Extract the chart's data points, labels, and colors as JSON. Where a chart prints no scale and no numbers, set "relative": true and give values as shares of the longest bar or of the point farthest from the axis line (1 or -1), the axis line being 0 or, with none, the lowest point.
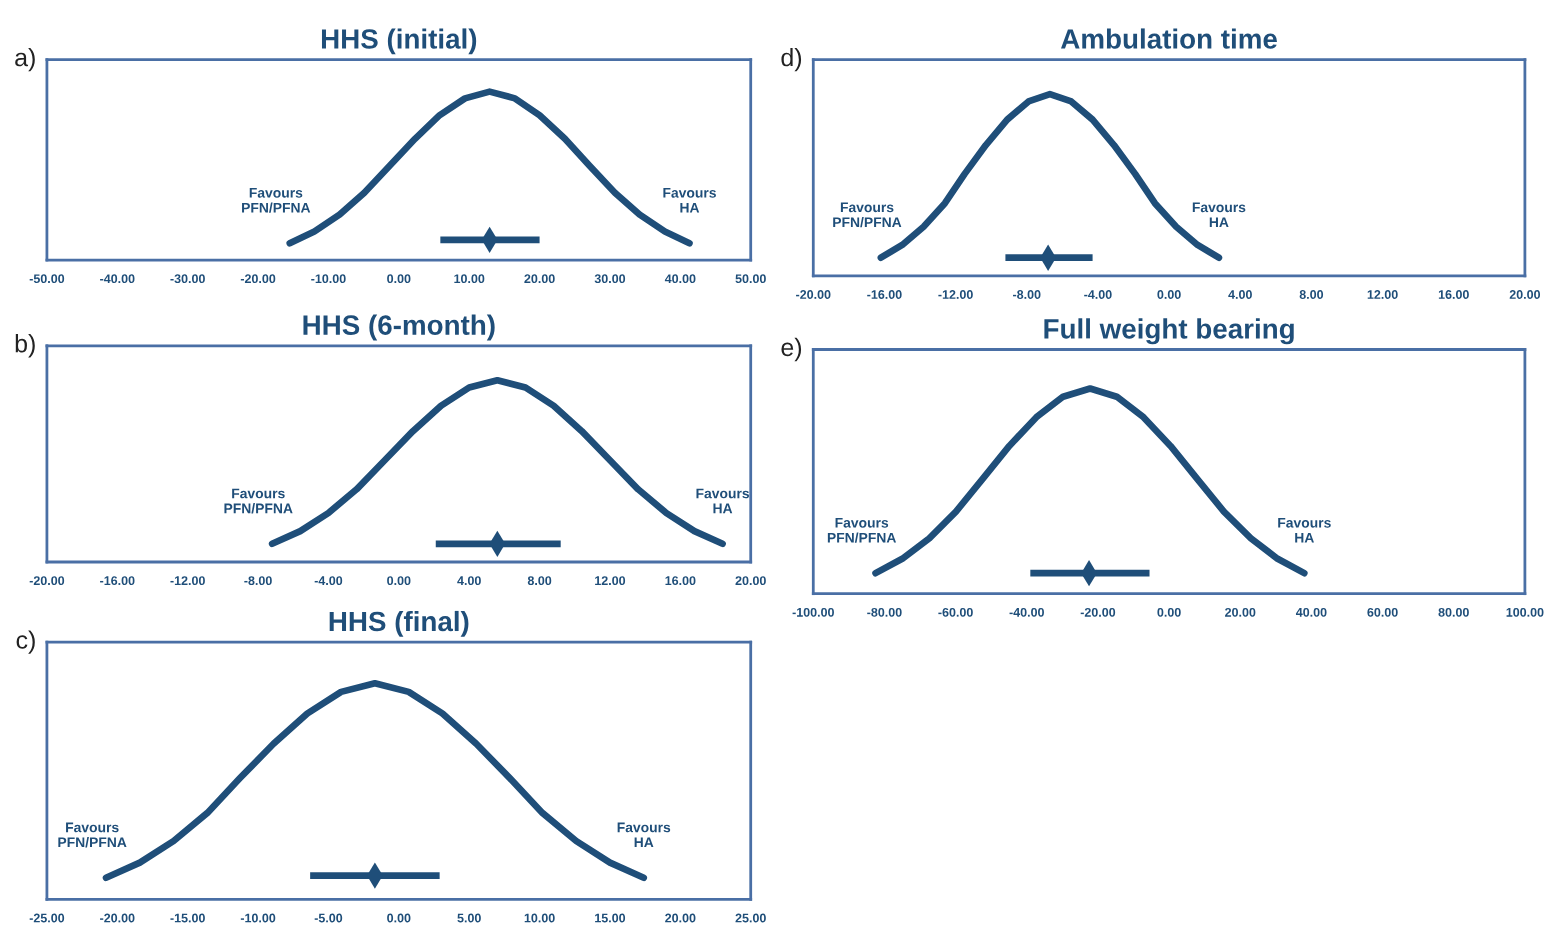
{
  "chart_data": [
    {
      "type": "line",
      "title": "HHS (initial)",
      "relative": true,
      "tick_labels": "x",
      "annotations": [
        "a)",
        "Favours\nPFN/PFNA",
        "Favours\nHA"
      ],
      "xlim": [
        -50,
        50
      ],
      "xticks": [
        {
          "value": -50,
          "label": "-50.00"
        },
        {
          "value": -40,
          "label": "-40.00"
        },
        {
          "value": -30,
          "label": "-30.00"
        },
        {
          "value": -20,
          "label": "-20.00"
        },
        {
          "value": -10,
          "label": "-10.00"
        },
        {
          "value": 0,
          "label": "0.00"
        },
        {
          "value": 10,
          "label": "10.00"
        },
        {
          "value": 20,
          "label": "20.00"
        },
        {
          "value": 30,
          "label": "30.00"
        },
        {
          "value": 40,
          "label": "40.00"
        },
        {
          "value": 50,
          "label": "50.00"
        }
      ],
      "series": [
        {
          "color": "#1f4e79",
          "x": [
            -15.5,
            -12.0,
            -8.4,
            -4.9,
            -1.3,
            2.3,
            5.8,
            9.4,
            12.9,
            16.5,
            20.0,
            23.6,
            27.1,
            30.7,
            34.2,
            37.8,
            41.3
          ],
          "values": [
            0.1,
            0.17,
            0.27,
            0.4,
            0.56,
            0.72,
            0.86,
            0.96,
            1,
            0.96,
            0.86,
            0.72,
            0.56,
            0.4,
            0.27,
            0.17,
            0.1
          ]
        },
        {
          "type": "scatter",
          "color": "#1f4e79",
          "x": [
            12.9
          ],
          "values": [
            0.12
          ],
          "marker": "diamond",
          "xerrors": [
            [
              5.9,
              20.0
            ]
          ]
        }
      ]
    },
    {
      "type": "line",
      "title": "HHS (6-month)",
      "relative": true,
      "tick_labels": "x",
      "annotations": [
        "b)",
        "Favours\nPFN/PFNA",
        "Favours\nHA"
      ],
      "xlim": [
        -20,
        20
      ],
      "xticks": [
        {
          "value": -20,
          "label": "-20.00"
        },
        {
          "value": -16,
          "label": "-16.00"
        },
        {
          "value": -12,
          "label": "-12.00"
        },
        {
          "value": -8,
          "label": "-8.00"
        },
        {
          "value": -4,
          "label": "-4.00"
        },
        {
          "value": 0,
          "label": "0.00"
        },
        {
          "value": 4,
          "label": "4.00"
        },
        {
          "value": 8,
          "label": "8.00"
        },
        {
          "value": 12,
          "label": "12.00"
        },
        {
          "value": 16,
          "label": "16.00"
        },
        {
          "value": 20,
          "label": "20.00"
        }
      ],
      "series": [
        {
          "color": "#1f4e79",
          "x": [
            -7.2,
            -5.6,
            -4.0,
            -2.4,
            -0.8,
            0.8,
            2.4,
            4.0,
            5.6,
            7.2,
            8.8,
            10.4,
            12.0,
            13.6,
            15.2,
            16.8,
            18.4
          ],
          "values": [
            0.1,
            0.17,
            0.27,
            0.4,
            0.56,
            0.72,
            0.86,
            0.96,
            1,
            0.96,
            0.86,
            0.72,
            0.56,
            0.4,
            0.27,
            0.17,
            0.1
          ]
        },
        {
          "type": "scatter",
          "color": "#1f4e79",
          "x": [
            5.6
          ],
          "values": [
            0.1
          ],
          "marker": "diamond",
          "xerrors": [
            [
              2.1,
              9.2
            ]
          ]
        }
      ]
    },
    {
      "type": "line",
      "title": "HHS (final)",
      "relative": true,
      "tick_labels": "x",
      "annotations": [
        "c)",
        "Favours\nPFN/PFNA",
        "Favours\nHA"
      ],
      "xlim": [
        -25,
        25
      ],
      "xticks": [
        {
          "value": -25,
          "label": "-25.00"
        },
        {
          "value": -20,
          "label": "-20.00"
        },
        {
          "value": -15,
          "label": "-15.00"
        },
        {
          "value": -10,
          "label": "-10.00"
        },
        {
          "value": -5,
          "label": "-5.00"
        },
        {
          "value": 0,
          "label": "0.00"
        },
        {
          "value": 5,
          "label": "5.00"
        },
        {
          "value": 10,
          "label": "10.00"
        },
        {
          "value": 15,
          "label": "15.00"
        },
        {
          "value": 20,
          "label": "20.00"
        },
        {
          "value": 25,
          "label": "25.00"
        }
      ],
      "series": [
        {
          "color": "#1f4e79",
          "x": [
            -20.8,
            -18.4,
            -16.0,
            -13.6,
            -11.3,
            -8.9,
            -6.5,
            -4.1,
            -1.7,
            0.7,
            3.1,
            5.5,
            7.9,
            10.2,
            12.6,
            15.0,
            17.4
          ],
          "values": [
            0.1,
            0.17,
            0.27,
            0.4,
            0.56,
            0.72,
            0.86,
            0.96,
            1,
            0.96,
            0.86,
            0.72,
            0.56,
            0.4,
            0.27,
            0.17,
            0.1
          ]
        },
        {
          "type": "scatter",
          "color": "#1f4e79",
          "x": [
            -1.7
          ],
          "values": [
            0.11
          ],
          "marker": "diamond",
          "xerrors": [
            [
              -6.3,
              2.9
            ]
          ]
        }
      ]
    },
    {
      "type": "line",
      "title": "Ambulation time",
      "relative": true,
      "tick_labels": "x",
      "annotations": [
        "d)",
        "Favours\nPFN/PFNA",
        "Favours\nHA"
      ],
      "xlim": [
        -20,
        20
      ],
      "xticks": [
        {
          "value": -20,
          "label": "-20.00"
        },
        {
          "value": -16,
          "label": "-16.00"
        },
        {
          "value": -12,
          "label": "-12.00"
        },
        {
          "value": -8,
          "label": "-8.00"
        },
        {
          "value": -4,
          "label": "-4.00"
        },
        {
          "value": 0,
          "label": "0.00"
        },
        {
          "value": 4,
          "label": "4.00"
        },
        {
          "value": 8,
          "label": "8.00"
        },
        {
          "value": 12,
          "label": "12.00"
        },
        {
          "value": 16,
          "label": "16.00"
        },
        {
          "value": 20,
          "label": "20.00"
        }
      ],
      "series": [
        {
          "color": "#1f4e79",
          "x": [
            -16.2,
            -15.0,
            -13.8,
            -12.6,
            -11.5,
            -10.3,
            -9.1,
            -7.9,
            -6.7,
            -5.5,
            -4.3,
            -3.1,
            -1.9,
            -0.8,
            0.4,
            1.6,
            2.8
          ],
          "values": [
            0.1,
            0.17,
            0.27,
            0.4,
            0.56,
            0.72,
            0.86,
            0.96,
            1,
            0.96,
            0.86,
            0.72,
            0.56,
            0.4,
            0.27,
            0.17,
            0.1
          ]
        },
        {
          "type": "scatter",
          "color": "#1f4e79",
          "x": [
            -6.8
          ],
          "values": [
            0.1
          ],
          "marker": "diamond",
          "xerrors": [
            [
              -9.2,
              -4.3
            ]
          ]
        }
      ]
    },
    {
      "type": "line",
      "title": "Full weight bearing",
      "relative": true,
      "tick_labels": "x",
      "annotations": [
        "e)",
        "Favours\nPFN/PFNA",
        "Favours\nHA"
      ],
      "xlim": [
        -100,
        100
      ],
      "xticks": [
        {
          "value": -100,
          "label": "-100.00"
        },
        {
          "value": -80,
          "label": "-80.00"
        },
        {
          "value": -60,
          "label": "-60.00"
        },
        {
          "value": -40,
          "label": "-40.00"
        },
        {
          "value": -20,
          "label": "-20.00"
        },
        {
          "value": 0,
          "label": "0.00"
        },
        {
          "value": 20,
          "label": "20.00"
        },
        {
          "value": 40,
          "label": "40.00"
        },
        {
          "value": 60,
          "label": "60.00"
        },
        {
          "value": 80,
          "label": "80.00"
        },
        {
          "value": 100,
          "label": "100.00"
        }
      ],
      "series": [
        {
          "color": "#1f4e79",
          "x": [
            -82.5,
            -75.0,
            -67.4,
            -59.9,
            -52.4,
            -44.9,
            -37.3,
            -29.8,
            -22.2,
            -14.7,
            -7.2,
            0.4,
            7.9,
            15.4,
            23.0,
            30.5,
            38.0
          ],
          "values": [
            0.1,
            0.17,
            0.27,
            0.4,
            0.56,
            0.72,
            0.86,
            0.96,
            1,
            0.96,
            0.86,
            0.72,
            0.56,
            0.4,
            0.27,
            0.17,
            0.1
          ]
        },
        {
          "type": "scatter",
          "color": "#1f4e79",
          "x": [
            -22.5
          ],
          "values": [
            0.1
          ],
          "marker": "diamond",
          "xerrors": [
            [
              -39.0,
              -5.5
            ]
          ]
        }
      ]
    }
  ]
}
